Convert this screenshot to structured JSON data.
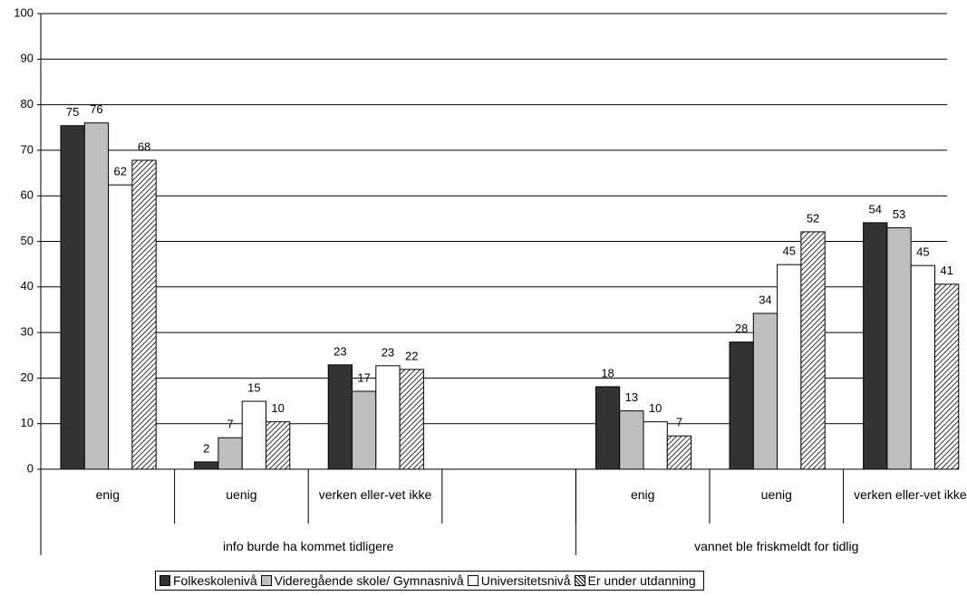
{
  "chart_data": {
    "type": "bar",
    "categories": [
      "enig",
      "uenig",
      "verken eller-vet ikke",
      null,
      "enig",
      "uenig",
      "verken eller-vet ikke"
    ],
    "groups": [
      {
        "label": "info burde ha kommet tidligere",
        "span": [
          0,
          3
        ]
      },
      {
        "label": "vannet ble friskmeldt for tidlig",
        "span": [
          4,
          6
        ]
      }
    ],
    "series": [
      {
        "name": "Folkeskolenivå",
        "color": "#333333",
        "values": [
          75.4,
          1.6,
          22.9,
          null,
          18.1,
          27.9,
          54.1
        ],
        "value_labels": [
          "75",
          "2",
          "23",
          null,
          "18",
          "28",
          "54"
        ]
      },
      {
        "name": "Videregående skole/ Gymnasnivå",
        "color": "#bfbfbf",
        "values": [
          76,
          6.9,
          17.1,
          null,
          12.8,
          34.2,
          53
        ],
        "value_labels": [
          "76",
          "7",
          "17",
          null,
          "13",
          "34",
          "53"
        ]
      },
      {
        "name": "Universitetsnivå",
        "color": "#ffffff",
        "values": [
          62.4,
          14.9,
          22.7,
          null,
          10.4,
          44.9,
          44.7
        ],
        "value_labels": [
          "62",
          "15",
          "23",
          null,
          "10",
          "45",
          "45"
        ]
      },
      {
        "name": "Er under utdanning",
        "color": "#ffffff",
        "hatch": true,
        "values": [
          67.8,
          10.4,
          21.9,
          null,
          7.3,
          52.1,
          40.6
        ],
        "value_labels": [
          "68",
          "10",
          "22",
          null,
          "7",
          "52",
          "41"
        ]
      }
    ],
    "ylim": [
      0,
      100
    ],
    "yticks": [
      0,
      10,
      20,
      30,
      40,
      50,
      60,
      70,
      80,
      90,
      100
    ],
    "grid": true,
    "legend": "bottom"
  }
}
